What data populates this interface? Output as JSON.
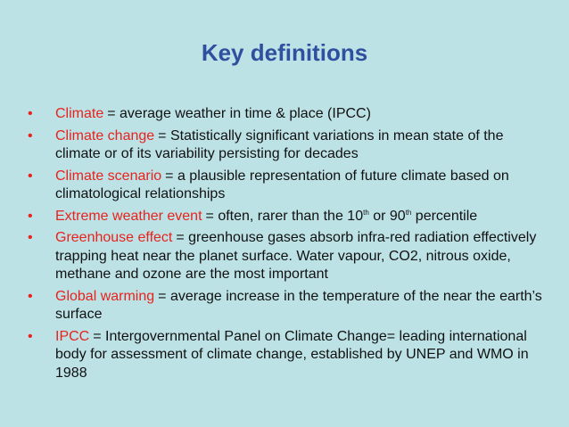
{
  "title": "Key definitions",
  "items": [
    {
      "term": "Climate",
      "definition": "= average weather in time & place (IPCC)"
    },
    {
      "term": "Climate change",
      "definition": "= Statistically significant variations in mean state of the climate or of its variability persisting for decades"
    },
    {
      "term": "Climate scenario",
      "definition": "= a plausible representation of future climate based on climatological relationships"
    },
    {
      "term": "Extreme weather event",
      "definition": [
        {
          "text": "= often, rarer than the 10"
        },
        {
          "text": "th",
          "sup": true
        },
        {
          "text": " or 90"
        },
        {
          "text": "th",
          "sup": true
        },
        {
          "text": " percentile"
        }
      ]
    },
    {
      "term": "Greenhouse effect",
      "definition": "= greenhouse gases absorb infra-red radiation effectively trapping heat near the planet surface. Water vapour, CO2, nitrous oxide, methane and ozone are the most important"
    },
    {
      "term": "Global warming",
      "definition": "= average increase in the temperature of the near the earth’s surface"
    },
    {
      "term": "IPCC",
      "definition": "= Intergovernmental Panel on Climate Change= leading international body for assessment of climate change, established by UNEP and WMO in 1988"
    }
  ]
}
